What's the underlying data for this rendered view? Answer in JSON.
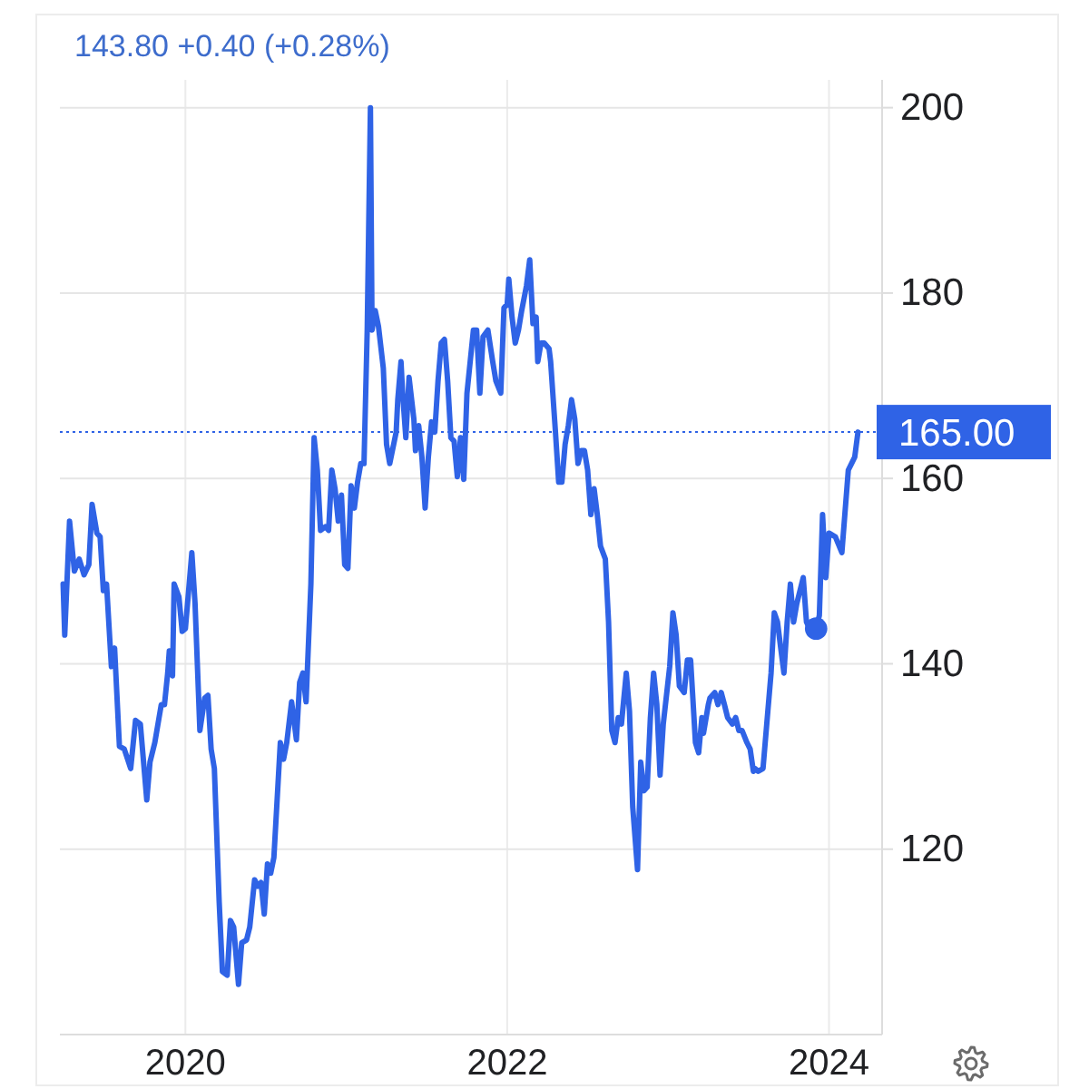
{
  "chart_data": {
    "type": "line",
    "title": "143.80 +0.40 (+0.28%)",
    "series": [
      {
        "color": "#2f63e6",
        "line_style": "solid",
        "x": [
          2019.24,
          2019.25,
          2019.28,
          2019.31,
          2019.34,
          2019.37,
          2019.4,
          2019.42,
          2019.45,
          2019.47,
          2019.49,
          2019.51,
          2019.54,
          2019.56,
          2019.59,
          2019.62,
          2019.66,
          2019.69,
          2019.72,
          2019.76,
          2019.78,
          2019.81,
          2019.85,
          2019.87,
          2019.89,
          2019.9,
          2019.92,
          2019.93,
          2019.96,
          2019.98,
          2020.0,
          2020.04,
          2020.06,
          2020.09,
          2020.12,
          2020.14,
          2020.16,
          2020.18,
          2020.21,
          2020.23,
          2020.26,
          2020.28,
          2020.3,
          2020.33,
          2020.35,
          2020.38,
          2020.4,
          2020.43,
          2020.45,
          2020.47,
          2020.49,
          2020.51,
          2020.53,
          2020.55,
          2020.59,
          2020.61,
          2020.63,
          2020.66,
          2020.69,
          2020.71,
          2020.73,
          2020.75,
          2020.78,
          2020.8,
          2020.82,
          2020.84,
          2020.87,
          2020.89,
          2020.91,
          2020.93,
          2020.95,
          2020.97,
          2020.99,
          2021.01,
          2021.03,
          2021.05,
          2021.07,
          2021.09,
          2021.11,
          2021.13,
          2021.15,
          2021.16,
          2021.18,
          2021.2,
          2021.23,
          2021.25,
          2021.27,
          2021.31,
          2021.32,
          2021.34,
          2021.35,
          2021.37,
          2021.39,
          2021.42,
          2021.43,
          2021.45,
          2021.47,
          2021.49,
          2021.51,
          2021.53,
          2021.55,
          2021.57,
          2021.59,
          2021.61,
          2021.63,
          2021.65,
          2021.67,
          2021.69,
          2021.71,
          2021.73,
          2021.75,
          2021.79,
          2021.81,
          2021.83,
          2021.85,
          2021.88,
          2021.91,
          2021.93,
          2021.96,
          2021.98,
          2022.0,
          2022.01,
          2022.03,
          2022.05,
          2022.07,
          2022.09,
          2022.12,
          2022.14,
          2022.16,
          2022.18,
          2022.19,
          2022.21,
          2022.23,
          2022.26,
          2022.27,
          2022.3,
          2022.32,
          2022.34,
          2022.36,
          2022.38,
          2022.4,
          2022.42,
          2022.44,
          2022.46,
          2022.48,
          2022.5,
          2022.52,
          2022.54,
          2022.56,
          2022.58,
          2022.61,
          2022.63,
          2022.65,
          2022.67,
          2022.69,
          2022.71,
          2022.74,
          2022.76,
          2022.78,
          2022.81,
          2022.83,
          2022.85,
          2022.87,
          2022.89,
          2022.91,
          2022.93,
          2022.95,
          2022.97,
          2023.01,
          2023.03,
          2023.05,
          2023.07,
          2023.1,
          2023.12,
          2023.14,
          2023.17,
          2023.19,
          2023.21,
          2023.22,
          2023.25,
          2023.26,
          2023.29,
          2023.31,
          2023.33,
          2023.35,
          2023.37,
          2023.4,
          2023.42,
          2023.44,
          2023.46,
          2023.49,
          2023.51,
          2023.53,
          2023.54,
          2023.56,
          2023.59,
          2023.62,
          2023.64,
          2023.66,
          2023.68,
          2023.7,
          2023.72,
          2023.74,
          2023.76,
          2023.78,
          2023.8,
          2023.82,
          2023.84,
          2023.86,
          2023.88,
          2023.9,
          2023.92,
          2023.94,
          2023.96,
          2023.98,
          2024.0,
          2024.04,
          2024.08,
          2024.12,
          2024.14,
          2024.16,
          2024.18
        ],
        "values": [
          148.6,
          143.1,
          155.4,
          150.0,
          151.3,
          149.6,
          150.7,
          157.2,
          154.1,
          153.7,
          147.9,
          148.6,
          139.7,
          141.7,
          131.1,
          130.8,
          128.7,
          133.9,
          133.5,
          125.3,
          129.4,
          131.5,
          135.6,
          135.6,
          139.0,
          141.4,
          138.7,
          148.6,
          147.2,
          143.5,
          143.8,
          152.0,
          146.5,
          132.8,
          136.3,
          136.6,
          130.8,
          128.7,
          114.3,
          106.8,
          106.4,
          112.3,
          111.6,
          105.4,
          109.9,
          110.2,
          111.6,
          116.7,
          116.0,
          116.4,
          113.0,
          118.4,
          117.4,
          119.1,
          131.5,
          129.7,
          131.5,
          135.9,
          131.8,
          138.0,
          139.0,
          135.9,
          148.6,
          164.4,
          160.9,
          154.4,
          154.8,
          154.4,
          160.9,
          158.9,
          155.4,
          158.2,
          150.7,
          150.3,
          159.2,
          156.8,
          159.6,
          161.6,
          161.6,
          176.0,
          200.0,
          176.0,
          178.1,
          176.4,
          171.9,
          163.7,
          161.6,
          165.0,
          168.5,
          172.6,
          169.2,
          164.4,
          170.9,
          166.4,
          163.0,
          165.7,
          162.3,
          156.8,
          162.3,
          166.1,
          165.0,
          170.5,
          174.6,
          175.0,
          170.5,
          164.4,
          164.0,
          160.2,
          164.4,
          159.9,
          169.2,
          176.0,
          176.0,
          169.2,
          175.3,
          176.0,
          172.6,
          170.5,
          169.2,
          178.4,
          178.8,
          181.5,
          177.4,
          174.6,
          176.0,
          178.1,
          180.8,
          183.6,
          176.7,
          177.4,
          172.6,
          174.6,
          174.6,
          174.0,
          172.6,
          165.0,
          159.6,
          159.6,
          163.7,
          165.7,
          168.5,
          166.4,
          161.6,
          163.0,
          163.0,
          160.9,
          156.1,
          158.9,
          156.1,
          152.7,
          151.3,
          144.5,
          132.8,
          131.5,
          134.2,
          133.5,
          139.0,
          134.9,
          124.6,
          117.8,
          129.4,
          126.3,
          126.7,
          134.2,
          139.0,
          135.6,
          128.0,
          133.5,
          139.7,
          145.5,
          143.1,
          137.6,
          136.9,
          140.4,
          140.4,
          131.5,
          130.4,
          134.2,
          132.5,
          135.6,
          136.3,
          136.9,
          135.6,
          136.9,
          135.6,
          134.2,
          133.5,
          134.2,
          132.8,
          132.8,
          131.5,
          130.8,
          128.4,
          128.7,
          128.4,
          128.7,
          134.9,
          139.0,
          145.5,
          144.5,
          141.7,
          139.0,
          144.5,
          148.6,
          144.5,
          146.5,
          147.9,
          149.3,
          144.5,
          143.8,
          143.5,
          143.8,
          145.2,
          156.1,
          149.3,
          154.1,
          153.7,
          152.0,
          160.9,
          161.6,
          162.3,
          165.0
        ]
      },
      {
        "type": "scatter",
        "color": "#2f63e6",
        "marker": "circle",
        "x": [
          2023.92
        ],
        "values": [
          143.8
        ]
      }
    ],
    "xlim": [
      2019.22,
      2024.33
    ],
    "xticks": [
      2020,
      2022,
      2024
    ],
    "ylim": [
      100,
      203
    ],
    "yticks": [
      120,
      140,
      160,
      180,
      200
    ],
    "grid": true,
    "ref_lines": [
      {
        "axis": "y",
        "value": 165,
        "label": "165.00",
        "color": "#2f63e6",
        "line_style": "dotted"
      }
    ]
  }
}
